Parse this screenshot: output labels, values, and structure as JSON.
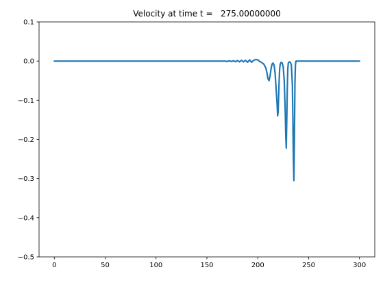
{
  "chart_data": {
    "type": "line",
    "title": "Velocity at time t =   275.00000000",
    "xlabel": "",
    "ylabel": "",
    "xlim": [
      -15,
      315
    ],
    "ylim": [
      -0.5,
      0.1
    ],
    "grid": false,
    "legend": "none",
    "x_ticks": [
      {
        "value": 0,
        "label": "0"
      },
      {
        "value": 50,
        "label": "50"
      },
      {
        "value": 100,
        "label": "100"
      },
      {
        "value": 150,
        "label": "150"
      },
      {
        "value": 200,
        "label": "200"
      },
      {
        "value": 250,
        "label": "250"
      },
      {
        "value": 300,
        "label": "300"
      }
    ],
    "y_ticks": [
      {
        "value": 0.1,
        "label": "0.1"
      },
      {
        "value": 0.0,
        "label": "0.0"
      },
      {
        "value": -0.1,
        "label": "−0.1"
      },
      {
        "value": -0.2,
        "label": "−0.2"
      },
      {
        "value": -0.3,
        "label": "−0.3"
      },
      {
        "value": -0.4,
        "label": "−0.4"
      },
      {
        "value": -0.5,
        "label": "−0.5"
      }
    ],
    "series": [
      {
        "color": "#1f77b4",
        "x": [
          0,
          50,
          100,
          150,
          165,
          168,
          170,
          172,
          174,
          176,
          178,
          180,
          182,
          184,
          186,
          188,
          190,
          192,
          194,
          196,
          198,
          200,
          202,
          204,
          206,
          208,
          209,
          210,
          211,
          212,
          213,
          214,
          215,
          216,
          217,
          218,
          219,
          219.5,
          220,
          220.5,
          221,
          221.5,
          222,
          223,
          224,
          225,
          226,
          227,
          227.5,
          228,
          228.5,
          229,
          229.5,
          230,
          231,
          232,
          233,
          234,
          234.5,
          235,
          235.5,
          236,
          236.5,
          237,
          237.5,
          238,
          239,
          240,
          250,
          275,
          300
        ],
        "values": [
          0,
          0,
          0,
          0,
          0,
          0,
          -0.001,
          0.001,
          -0.001,
          0.001,
          -0.0015,
          0.0015,
          -0.002,
          0.002,
          -0.002,
          0.002,
          -0.003,
          0.003,
          -0.003,
          0.002,
          0.004,
          0.003,
          -0.001,
          -0.004,
          -0.008,
          -0.018,
          -0.03,
          -0.045,
          -0.05,
          -0.04,
          -0.02,
          -0.008,
          -0.005,
          -0.01,
          -0.03,
          -0.07,
          -0.11,
          -0.14,
          -0.13,
          -0.09,
          -0.05,
          -0.02,
          -0.008,
          -0.003,
          -0.005,
          -0.015,
          -0.05,
          -0.13,
          -0.19,
          -0.222,
          -0.15,
          -0.07,
          -0.02,
          -0.005,
          -0.002,
          -0.003,
          -0.01,
          -0.06,
          -0.15,
          -0.25,
          -0.305,
          -0.2,
          -0.06,
          -0.01,
          0.0,
          0.0,
          0.0,
          0.0,
          0.0,
          0.0,
          0.0
        ]
      }
    ]
  }
}
